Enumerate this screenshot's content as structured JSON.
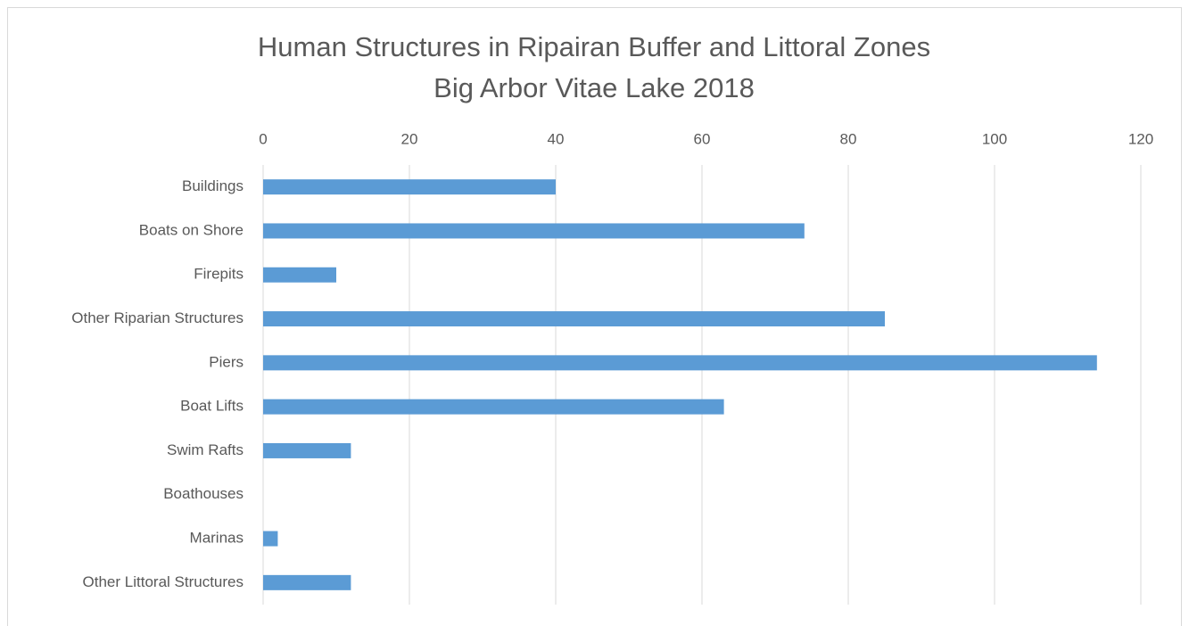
{
  "chart_data": {
    "type": "hbar",
    "title": "Human Structures in Ripairan Buffer and Littoral Zones",
    "subtitle": "Big Arbor Vitae Lake 2018",
    "categories": [
      "Buildings",
      "Boats on Shore",
      "Firepits",
      "Other Riparian Structures",
      "Piers",
      "Boat Lifts",
      "Swim Rafts",
      "Boathouses",
      "Marinas",
      "Other Littoral Structures"
    ],
    "values": [
      40,
      74,
      10,
      85,
      114,
      63,
      12,
      0,
      2,
      12
    ],
    "color": "#5b9bd5",
    "xlim": [
      0,
      120
    ],
    "xticks": [
      0,
      20,
      40,
      60,
      80,
      100,
      120
    ],
    "grid": true
  }
}
